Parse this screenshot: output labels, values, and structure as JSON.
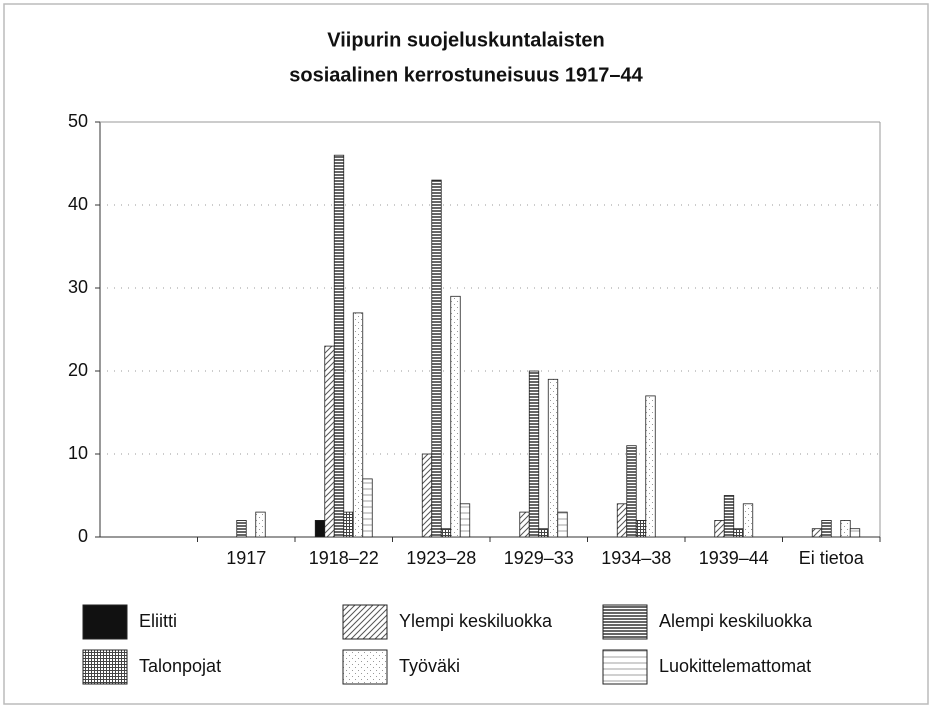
{
  "chart_data": {
    "type": "bar",
    "title": [
      "Viipurin suojeluskuntalaisten",
      "sosiaalinen kerrostuneisuus 1917–44"
    ],
    "categories": [
      null,
      "1917",
      "1918–22",
      "1923–28",
      "1929–33",
      "1934–38",
      "1939–44",
      "Ei tietoa"
    ],
    "series": [
      {
        "name": "Eliitti",
        "color": "#111111",
        "pattern": "solid",
        "values": [
          null,
          0,
          2,
          0,
          0,
          0,
          0,
          0
        ]
      },
      {
        "name": "Ylempi keskiluokka",
        "color": "#555555",
        "pattern": "diagonal",
        "values": [
          null,
          0,
          23,
          10,
          3,
          4,
          2,
          1
        ]
      },
      {
        "name": "Alempi keskiluokka",
        "color": "#333333",
        "pattern": "horizontal-dense",
        "values": [
          null,
          2,
          46,
          43,
          20,
          11,
          5,
          2
        ]
      },
      {
        "name": "Talonpojat",
        "color": "#444444",
        "pattern": "grid",
        "values": [
          null,
          0,
          3,
          1,
          1,
          2,
          1,
          0
        ]
      },
      {
        "name": "Työväki",
        "color": "#999999",
        "pattern": "dots",
        "values": [
          null,
          3,
          27,
          29,
          19,
          17,
          4,
          2
        ]
      },
      {
        "name": "Luokittelemattomat",
        "color": "#888888",
        "pattern": "horizontal",
        "values": [
          null,
          0,
          7,
          4,
          3,
          0,
          0,
          1
        ]
      }
    ],
    "ylim": [
      0,
      50
    ],
    "yticks": [
      0,
      10,
      20,
      30,
      40,
      50
    ],
    "grid": true,
    "legend": "bottom"
  }
}
